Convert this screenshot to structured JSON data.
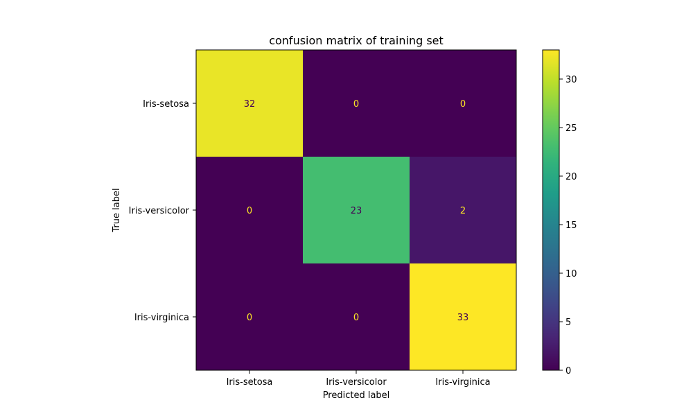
{
  "chart_data": {
    "type": "heatmap",
    "title": "confusion matrix of training set",
    "xlabel": "Predicted label",
    "ylabel": "True label",
    "x_categories": [
      "Iris-setosa",
      "Iris-versicolor",
      "Iris-virginica"
    ],
    "y_categories": [
      "Iris-setosa",
      "Iris-versicolor",
      "Iris-virginica"
    ],
    "values": [
      [
        32,
        0,
        0
      ],
      [
        0,
        23,
        2
      ],
      [
        0,
        0,
        33
      ]
    ],
    "colormap": "viridis",
    "color_range": [
      0,
      33
    ],
    "colorbar_ticks": [
      0,
      5,
      10,
      15,
      20,
      25,
      30
    ],
    "cell_text_colors": {
      "dark": "#fde725",
      "light": "#440154"
    },
    "grid": false
  }
}
